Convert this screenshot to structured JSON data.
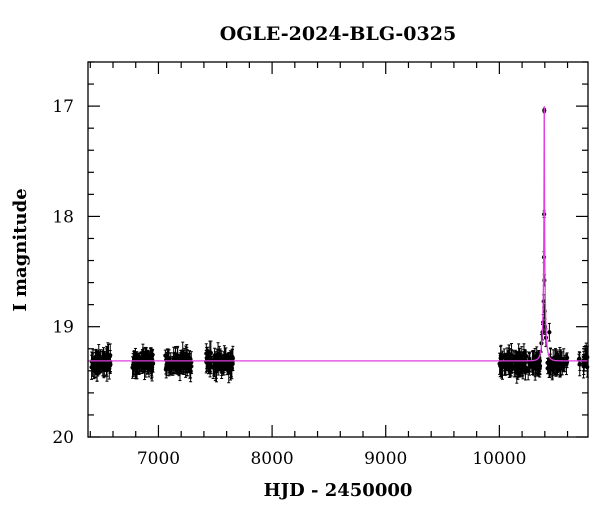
{
  "chart_data": {
    "type": "scatter",
    "title": "OGLE-2024-BLG-0325",
    "xlabel": "HJD - 2450000",
    "ylabel": "I magnitude",
    "xlim": [
      6380,
      10780
    ],
    "ylim": [
      20.0,
      16.6
    ],
    "y_inverted": true,
    "x_ticks": [
      7000,
      8000,
      9000,
      10000
    ],
    "x_tick_labels": [
      "7000",
      "8000",
      "9000",
      "10000"
    ],
    "y_ticks": [
      17,
      18,
      19,
      20
    ],
    "y_tick_labels": [
      "17",
      "18",
      "19",
      "20"
    ],
    "x_minor_step": 200,
    "y_minor_step": 0.2,
    "grid": false,
    "colors": {
      "data": "#000000",
      "model": "#e23ee2"
    },
    "baseline_magnitude": 19.31,
    "seasons": [
      {
        "start": 6410,
        "end": 6580,
        "n": 70
      },
      {
        "start": 6770,
        "end": 6960,
        "n": 80
      },
      {
        "start": 7060,
        "end": 7290,
        "n": 90
      },
      {
        "start": 7420,
        "end": 7660,
        "n": 90
      },
      {
        "start": 10000,
        "end": 10240,
        "n": 90
      },
      {
        "start": 10250,
        "end": 10360,
        "n": 35
      },
      {
        "start": 10420,
        "end": 10600,
        "n": 50
      },
      {
        "start": 10700,
        "end": 10780,
        "n": 15
      }
    ],
    "event_points": [
      {
        "x": 10395,
        "y": 17.04,
        "err": 0.02
      },
      {
        "x": 10394,
        "y": 17.98,
        "err": 0.03
      },
      {
        "x": 10393,
        "y": 18.37,
        "err": 0.05
      },
      {
        "x": 10396,
        "y": 18.58,
        "err": 0.05
      },
      {
        "x": 10390,
        "y": 18.77,
        "err": 0.06
      },
      {
        "x": 10398,
        "y": 18.86,
        "err": 0.06
      },
      {
        "x": 10386,
        "y": 18.96,
        "err": 0.07
      },
      {
        "x": 10402,
        "y": 19.0,
        "err": 0.07
      },
      {
        "x": 10380,
        "y": 19.05,
        "err": 0.07
      },
      {
        "x": 10410,
        "y": 19.1,
        "err": 0.08
      },
      {
        "x": 10440,
        "y": 19.05,
        "err": 0.08
      },
      {
        "x": 10370,
        "y": 19.15,
        "err": 0.08
      }
    ],
    "model": {
      "t0": 10395,
      "peak_magnitude": 17.0,
      "tE": 28,
      "u0": 0.04
    }
  }
}
